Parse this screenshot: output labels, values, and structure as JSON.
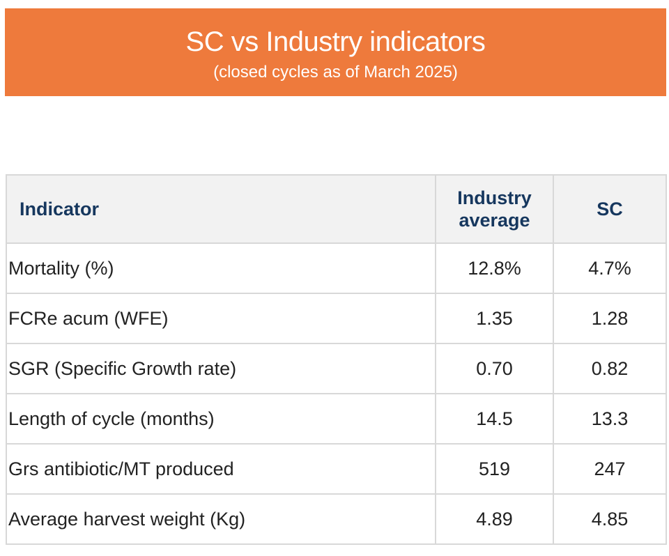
{
  "banner": {
    "title": "SC vs Industry indicators",
    "subtitle": "(closed cycles as of March 2025)",
    "color": "#ee7a3c"
  },
  "table": {
    "headers": {
      "indicator": "Indicator",
      "industry_line1": "Industry",
      "industry_line2": "average",
      "sc": "SC"
    },
    "rows": [
      {
        "indicator": "Mortality (%)",
        "industry": "12.8%",
        "sc": "4.7%"
      },
      {
        "indicator": "FCRe acum (WFE)",
        "industry": "1.35",
        "sc": "1.28"
      },
      {
        "indicator": "SGR (Specific Growth rate)",
        "industry": "0.70",
        "sc": "0.82"
      },
      {
        "indicator": "Length of cycle (months)",
        "industry": "14.5",
        "sc": "13.3"
      },
      {
        "indicator": "Grs antibiotic/MT produced",
        "industry": "519",
        "sc": "247"
      },
      {
        "indicator": "Average harvest weight (Kg)",
        "industry": "4.89",
        "sc": "4.85"
      }
    ],
    "header_text_color": "#16375e",
    "header_bg": "#f2f2f2",
    "border_color": "#d8d8d8"
  }
}
